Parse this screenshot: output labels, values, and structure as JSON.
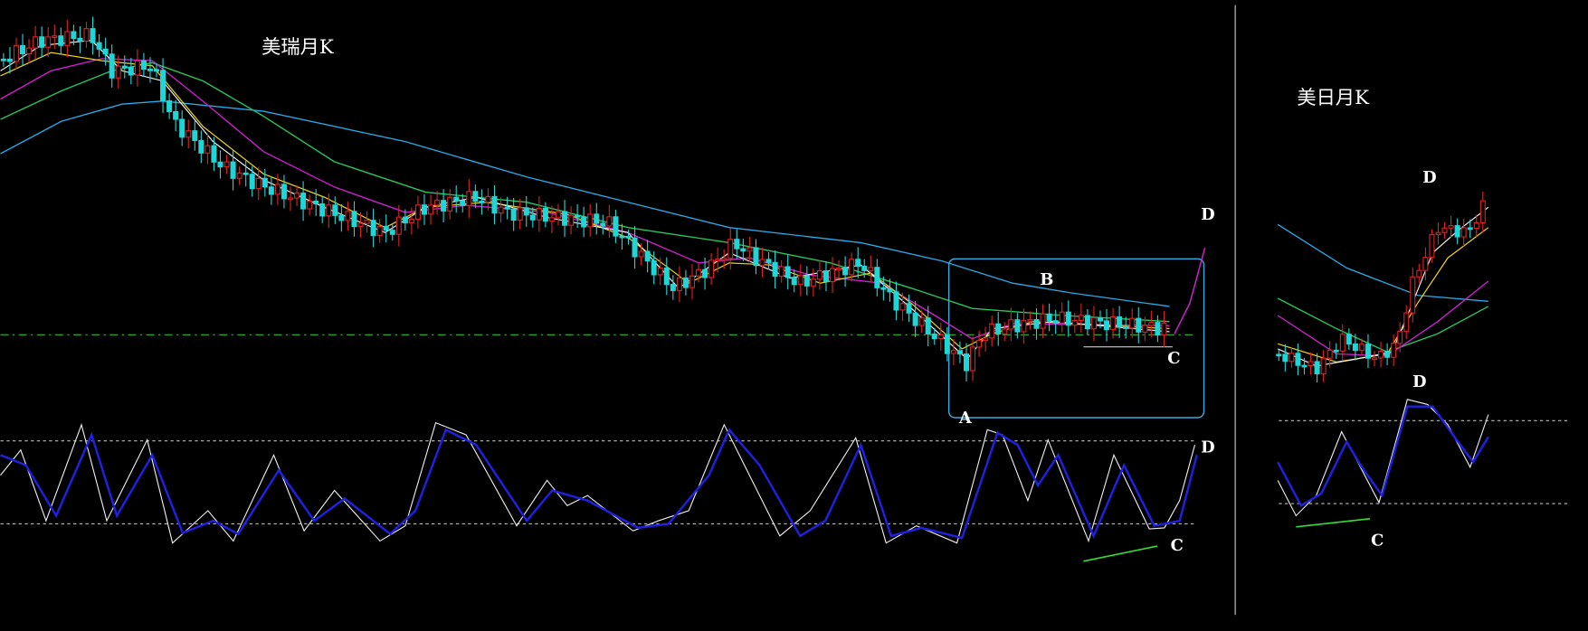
{
  "left_panel": {
    "title": "美瑞月K",
    "annotations": [
      "A",
      "B",
      "C",
      "D",
      "D",
      "C"
    ]
  },
  "right_panel": {
    "title": "美日月K",
    "annotations": [
      "D",
      "D",
      "C"
    ]
  }
}
